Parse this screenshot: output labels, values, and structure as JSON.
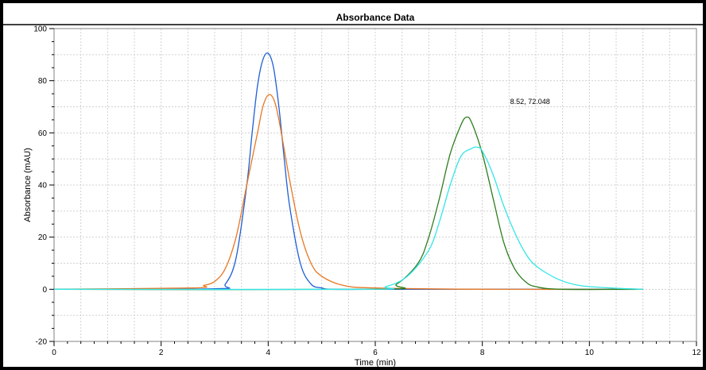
{
  "chart_data": {
    "type": "line",
    "title": "Absorbance Data",
    "xlabel": "Time (min)",
    "ylabel": "Absorbance (mAU)",
    "xlim": [
      0,
      12
    ],
    "ylim": [
      -20,
      100
    ],
    "xticks": [
      "0",
      "2",
      "4",
      "6",
      "8",
      "10",
      "12"
    ],
    "yticks": [
      "-20",
      "0",
      "20",
      "40",
      "60",
      "80",
      "100"
    ],
    "grid": true,
    "annotation": "8.52, 72.048",
    "series": [
      {
        "color": "#1f5fd6",
        "x": [
          0,
          3.0,
          3.2,
          3.4,
          3.6,
          3.7,
          3.8,
          3.9,
          4.0,
          4.1,
          4.2,
          4.3,
          4.4,
          4.6,
          4.8,
          5.0,
          5.2,
          6.0,
          8.0,
          11.0
        ],
        "y": [
          0,
          0.2,
          2,
          12,
          40,
          60,
          78,
          88,
          90.5,
          85,
          70,
          50,
          32,
          10,
          2,
          0.5,
          0,
          0,
          0,
          0
        ]
      },
      {
        "color": "#e87722",
        "x": [
          0,
          2.6,
          2.8,
          3.0,
          3.2,
          3.4,
          3.6,
          3.8,
          3.9,
          4.0,
          4.1,
          4.2,
          4.4,
          4.6,
          4.8,
          5.0,
          5.4,
          6.0,
          8.0,
          11.0
        ],
        "y": [
          0,
          0.5,
          1.5,
          3,
          8,
          20,
          40,
          60,
          70,
          74.5,
          73,
          65,
          42,
          22,
          10,
          5,
          1.5,
          0.5,
          0,
          0
        ]
      },
      {
        "color": "#2e7d1e",
        "x": [
          0,
          6.0,
          6.4,
          6.8,
          7.0,
          7.2,
          7.4,
          7.6,
          7.7,
          7.8,
          8.0,
          8.2,
          8.4,
          8.6,
          8.8,
          9.0,
          9.5,
          11.0
        ],
        "y": [
          0,
          0,
          2,
          10,
          20,
          35,
          52,
          63,
          66,
          64,
          52,
          35,
          18,
          8,
          3,
          1,
          0,
          0
        ]
      },
      {
        "color": "#33e6e6",
        "x": [
          0,
          5.8,
          6.2,
          6.6,
          7.0,
          7.2,
          7.4,
          7.6,
          7.8,
          7.9,
          8.0,
          8.2,
          8.4,
          8.6,
          8.8,
          9.0,
          9.4,
          9.8,
          10.4,
          11.0
        ],
        "y": [
          0,
          0,
          1,
          5,
          15,
          26,
          40,
          51,
          54,
          54.5,
          53,
          44,
          32,
          22,
          14,
          9,
          4,
          1.5,
          0.5,
          0
        ]
      }
    ]
  }
}
